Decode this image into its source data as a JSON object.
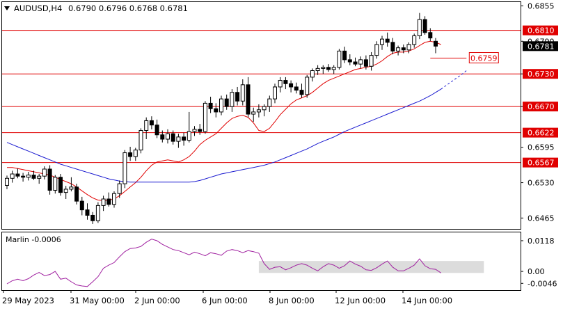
{
  "chart_data": [
    {
      "type": "candlestick",
      "symbol_label": "AUDUSD,H4",
      "ohlc_label": "0.6790 0.6796 0.6768 0.6781",
      "ylim": [
        0.6445,
        0.6862
      ],
      "y_ticks": [
        "0.6855",
        "0.6790",
        "0.6730",
        "0.6670",
        "0.6595",
        "0.6530",
        "0.6465"
      ],
      "level_lines": [
        {
          "value": 0.681,
          "label": "0.6810"
        },
        {
          "value": 0.673,
          "label": "0.6730"
        },
        {
          "value": 0.667,
          "label": "0.6670"
        },
        {
          "value": 0.6622,
          "label": "0.6622"
        },
        {
          "value": 0.6567,
          "label": "0.6567"
        }
      ],
      "current_price": {
        "value": 0.6781,
        "label": "0.6781"
      },
      "target": {
        "value": 0.6759,
        "label": "0.6759"
      },
      "x_labels": [
        "29 May 2023",
        "31 May 00:00",
        "2 Jun 00:00",
        "6 Jun 00:00",
        "8 Jun 00:00",
        "12 Jun 00:00",
        "14 Jun 00:00"
      ],
      "candles": [
        [
          0.6525,
          0.6543,
          0.6518,
          0.6538
        ],
        [
          0.6538,
          0.6552,
          0.653,
          0.6546
        ],
        [
          0.6546,
          0.6556,
          0.6538,
          0.6542
        ],
        [
          0.6542,
          0.6548,
          0.6532,
          0.654
        ],
        [
          0.654,
          0.655,
          0.6534,
          0.6544
        ],
        [
          0.6544,
          0.6552,
          0.6535,
          0.6538
        ],
        [
          0.6538,
          0.6546,
          0.6528,
          0.6542
        ],
        [
          0.6542,
          0.656,
          0.6536,
          0.6555
        ],
        [
          0.6555,
          0.6562,
          0.6508,
          0.6516
        ],
        [
          0.6516,
          0.6544,
          0.651,
          0.654
        ],
        [
          0.654,
          0.6546,
          0.6506,
          0.6512
        ],
        [
          0.6512,
          0.6524,
          0.65,
          0.6518
        ],
        [
          0.6518,
          0.654,
          0.6514,
          0.6522
        ],
        [
          0.6522,
          0.6528,
          0.649,
          0.6496
        ],
        [
          0.6496,
          0.6504,
          0.647,
          0.648
        ],
        [
          0.648,
          0.6492,
          0.6462,
          0.647
        ],
        [
          0.647,
          0.6476,
          0.6454,
          0.646
        ],
        [
          0.646,
          0.6494,
          0.6456,
          0.6488
        ],
        [
          0.6488,
          0.6506,
          0.6478,
          0.65
        ],
        [
          0.65,
          0.6512,
          0.6486,
          0.649
        ],
        [
          0.649,
          0.6514,
          0.6484,
          0.651
        ],
        [
          0.651,
          0.6534,
          0.6502,
          0.6528
        ],
        [
          0.6528,
          0.659,
          0.652,
          0.6585
        ],
        [
          0.6585,
          0.6596,
          0.657,
          0.6578
        ],
        [
          0.6578,
          0.6594,
          0.657,
          0.659
        ],
        [
          0.659,
          0.663,
          0.6584,
          0.6626
        ],
        [
          0.6626,
          0.665,
          0.661,
          0.6644
        ],
        [
          0.6644,
          0.6652,
          0.6628,
          0.6636
        ],
        [
          0.6636,
          0.6646,
          0.6612,
          0.6618
        ],
        [
          0.6618,
          0.6626,
          0.6604,
          0.661
        ],
        [
          0.661,
          0.6628,
          0.6602,
          0.662
        ],
        [
          0.662,
          0.6626,
          0.66,
          0.6606
        ],
        [
          0.6606,
          0.662,
          0.6594,
          0.6614
        ],
        [
          0.6614,
          0.6622,
          0.6598,
          0.6608
        ],
        [
          0.6608,
          0.666,
          0.6604,
          0.6624
        ],
        [
          0.6624,
          0.6634,
          0.6616,
          0.6628
        ],
        [
          0.6628,
          0.6638,
          0.6618,
          0.6624
        ],
        [
          0.6624,
          0.668,
          0.662,
          0.6676
        ],
        [
          0.6676,
          0.6688,
          0.6658,
          0.6666
        ],
        [
          0.6666,
          0.6676,
          0.665,
          0.666
        ],
        [
          0.666,
          0.669,
          0.6654,
          0.6684
        ],
        [
          0.6684,
          0.6692,
          0.6664,
          0.667
        ],
        [
          0.667,
          0.6702,
          0.666,
          0.6696
        ],
        [
          0.6696,
          0.6706,
          0.6672,
          0.668
        ],
        [
          0.668,
          0.672,
          0.6672,
          0.671
        ],
        [
          0.671,
          0.6724,
          0.665,
          0.6656
        ],
        [
          0.6656,
          0.6668,
          0.6642,
          0.666
        ],
        [
          0.666,
          0.6674,
          0.665,
          0.6664
        ],
        [
          0.6664,
          0.6674,
          0.6652,
          0.667
        ],
        [
          0.667,
          0.669,
          0.666,
          0.6684
        ],
        [
          0.6684,
          0.6712,
          0.6676,
          0.6706
        ],
        [
          0.6706,
          0.6724,
          0.6696,
          0.6718
        ],
        [
          0.6718,
          0.6724,
          0.6702,
          0.6712
        ],
        [
          0.6712,
          0.6718,
          0.6696,
          0.6706
        ],
        [
          0.6706,
          0.6714,
          0.6694,
          0.67
        ],
        [
          0.67,
          0.6712,
          0.6686,
          0.6692
        ],
        [
          0.6692,
          0.6728,
          0.6686,
          0.6724
        ],
        [
          0.6724,
          0.674,
          0.6716,
          0.6736
        ],
        [
          0.6736,
          0.6746,
          0.6728,
          0.674
        ],
        [
          0.674,
          0.6746,
          0.673,
          0.6742
        ],
        [
          0.6742,
          0.6748,
          0.6734,
          0.6738
        ],
        [
          0.6738,
          0.6746,
          0.673,
          0.6742
        ],
        [
          0.6742,
          0.6776,
          0.6738,
          0.6772
        ],
        [
          0.6772,
          0.678,
          0.675,
          0.6756
        ],
        [
          0.6756,
          0.6766,
          0.6746,
          0.6752
        ],
        [
          0.6752,
          0.676,
          0.6744,
          0.6748
        ],
        [
          0.6748,
          0.6762,
          0.674,
          0.6756
        ],
        [
          0.6756,
          0.6764,
          0.6738,
          0.6744
        ],
        [
          0.6744,
          0.677,
          0.6736,
          0.6764
        ],
        [
          0.6764,
          0.679,
          0.6758,
          0.6784
        ],
        [
          0.6784,
          0.68,
          0.6774,
          0.6794
        ],
        [
          0.6794,
          0.6806,
          0.678,
          0.6788
        ],
        [
          0.6788,
          0.6796,
          0.6766,
          0.6772
        ],
        [
          0.6772,
          0.6782,
          0.6764,
          0.6778
        ],
        [
          0.6778,
          0.6784,
          0.6768,
          0.6774
        ],
        [
          0.6774,
          0.6788,
          0.6768,
          0.6784
        ],
        [
          0.6784,
          0.6804,
          0.6778,
          0.68
        ],
        [
          0.68,
          0.6842,
          0.6794,
          0.683
        ],
        [
          0.683,
          0.6836,
          0.6802,
          0.6806
        ],
        [
          0.6806,
          0.6814,
          0.679,
          0.6796
        ],
        [
          0.679,
          0.6796,
          0.6768,
          0.6781
        ]
      ],
      "series": [
        {
          "type": "line",
          "color": "#e00000",
          "values": [
            0.6558,
            0.6558,
            0.6556,
            0.6554,
            0.6552,
            0.655,
            0.6548,
            0.6546,
            0.6544,
            0.654,
            0.6536,
            0.6532,
            0.6528,
            0.6522,
            0.6515,
            0.6508,
            0.6502,
            0.6498,
            0.6497,
            0.6498,
            0.65,
            0.6506,
            0.6514,
            0.6522,
            0.653,
            0.654,
            0.6552,
            0.6562,
            0.6568,
            0.657,
            0.6572,
            0.657,
            0.6568,
            0.6572,
            0.6578,
            0.6588,
            0.66,
            0.6608,
            0.6614,
            0.662,
            0.663,
            0.664,
            0.6648,
            0.6652,
            0.6654,
            0.665,
            0.664,
            0.6626,
            0.6624,
            0.663,
            0.6642,
            0.6655,
            0.6665,
            0.6675,
            0.6682,
            0.6686,
            0.669,
            0.6696,
            0.6704,
            0.6712,
            0.6718,
            0.6722,
            0.6726,
            0.673,
            0.6734,
            0.6738,
            0.674,
            0.6742,
            0.6744,
            0.6748,
            0.6754,
            0.6762,
            0.6768,
            0.677,
            0.677,
            0.6772,
            0.6776,
            0.6782,
            0.6788,
            0.679,
            0.6788,
            0.6784
          ]
        },
        {
          "type": "line",
          "color": "#1a1ad0",
          "values": [
            0.6604,
            0.66,
            0.6596,
            0.6592,
            0.6588,
            0.6584,
            0.658,
            0.6576,
            0.6572,
            0.6568,
            0.6564,
            0.6561,
            0.6558,
            0.6555,
            0.6552,
            0.6549,
            0.6546,
            0.6543,
            0.654,
            0.6537,
            0.6535,
            0.6533,
            0.6532,
            0.6531,
            0.6531,
            0.6531,
            0.6531,
            0.6531,
            0.6531,
            0.6531,
            0.6531,
            0.6531,
            0.6531,
            0.6531,
            0.6531,
            0.6532,
            0.6534,
            0.6537,
            0.654,
            0.6543,
            0.6546,
            0.6548,
            0.655,
            0.6552,
            0.6554,
            0.6556,
            0.6558,
            0.656,
            0.6562,
            0.6565,
            0.6568,
            0.6572,
            0.6576,
            0.658,
            0.6584,
            0.6588,
            0.6592,
            0.6597,
            0.6602,
            0.6606,
            0.661,
            0.6614,
            0.6619,
            0.6624,
            0.6628,
            0.6632,
            0.6636,
            0.664,
            0.6644,
            0.6648,
            0.6652,
            0.6656,
            0.666,
            0.6664,
            0.6668,
            0.6672,
            0.6676,
            0.668,
            0.6685,
            0.669,
            0.6696,
            0.6702
          ],
          "dashed_extension": [
            0.6702,
            0.6709,
            0.6716,
            0.6723,
            0.673,
            0.6738
          ]
        }
      ]
    },
    {
      "type": "line",
      "indicator_label": "Marlin -0.0006",
      "ylim": [
        -0.0072,
        0.015
      ],
      "y_ticks": [
        "0.0118",
        "0.00",
        "-0.0046"
      ],
      "zero_band": [
        -0.0006,
        0.004
      ],
      "series": [
        {
          "type": "line",
          "color": "#a020a0",
          "values": [
            -0.0048,
            -0.0036,
            -0.003,
            -0.0036,
            -0.0028,
            -0.0014,
            -0.0004,
            -0.0016,
            -0.0012,
            0.0,
            -0.003,
            -0.0026,
            -0.004,
            -0.0052,
            -0.0056,
            -0.0058,
            -0.004,
            -0.002,
            0.0012,
            0.0024,
            0.0034,
            0.0056,
            0.0076,
            0.0088,
            0.009,
            0.0096,
            0.0112,
            0.0124,
            0.0118,
            0.0104,
            0.0094,
            0.0084,
            0.008,
            0.0072,
            0.0064,
            0.0074,
            0.0068,
            0.006,
            0.0072,
            0.0068,
            0.0062,
            0.0078,
            0.0084,
            0.008,
            0.0072,
            0.008,
            0.0076,
            0.007,
            0.003,
            0.0008,
            0.0016,
            0.0018,
            0.0006,
            0.0014,
            0.0024,
            0.003,
            0.0024,
            0.0012,
            0.0002,
            0.0018,
            0.003,
            0.0024,
            0.0012,
            0.0022,
            0.004,
            0.0028,
            0.002,
            0.0006,
            0.0004,
            0.0014,
            0.0028,
            0.004,
            0.0016,
            0.0002,
            0.0002,
            0.0012,
            0.0024,
            0.0048,
            0.0022,
            0.001,
            0.0008,
            -0.0006
          ]
        }
      ]
    }
  ]
}
